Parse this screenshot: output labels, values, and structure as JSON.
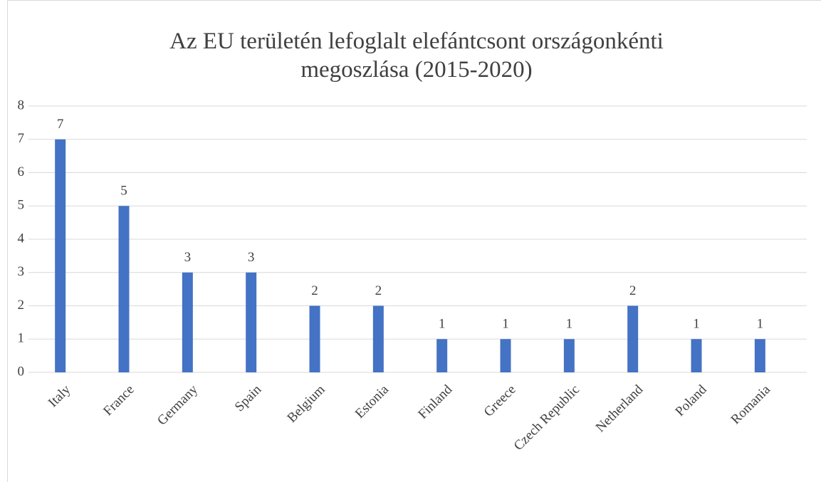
{
  "chart_data": {
    "type": "bar",
    "title": "Az EU területén lefoglalt elefántcsont országonkénti megoszlása (2015-2020)",
    "categories": [
      "Italy",
      "France",
      "Germany",
      "Spain",
      "Belgium",
      "Estonia",
      "Finland",
      "Greece",
      "Czech Republic",
      "Netherland",
      "Poland",
      "Romania"
    ],
    "values": [
      7,
      5,
      3,
      3,
      2,
      2,
      1,
      1,
      1,
      2,
      1,
      1
    ],
    "color": "#4472c4",
    "ylim": [
      0,
      8
    ],
    "yticks": [
      0,
      1,
      2,
      3,
      4,
      5,
      6,
      7,
      8
    ],
    "grid": true
  }
}
